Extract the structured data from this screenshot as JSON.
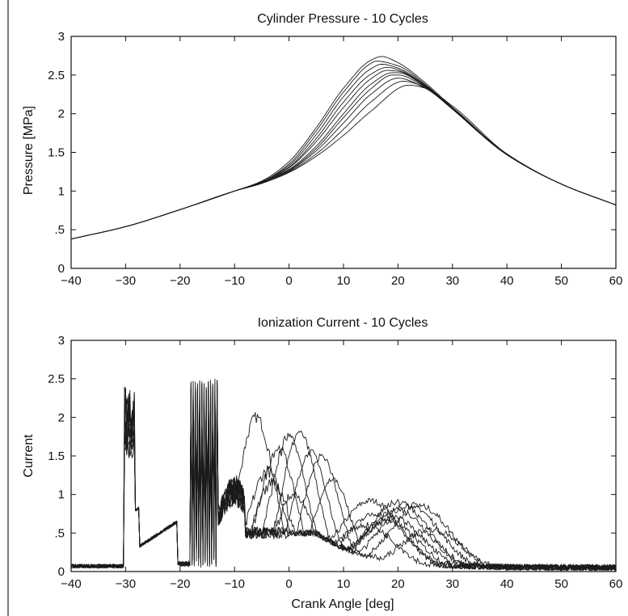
{
  "chart_data": [
    {
      "type": "line",
      "title": "Cylinder Pressure - 10 Cycles",
      "xlabel": "",
      "ylabel": "Pressure [MPa]",
      "xlim": [
        -40,
        60
      ],
      "ylim": [
        0,
        3
      ],
      "xticks": [
        -40,
        -30,
        -20,
        -10,
        0,
        10,
        20,
        30,
        40,
        50,
        60
      ],
      "yticks": [
        0,
        0.5,
        1,
        1.5,
        2,
        2.5,
        3
      ],
      "grid": false,
      "series": [
        {
          "peak_x": 17,
          "peak_y": 2.74,
          "x": [
            -40,
            -30,
            -20,
            -10,
            -5,
            0,
            5,
            10,
            15,
            17,
            20,
            25,
            30,
            40,
            50,
            60
          ],
          "values": [
            0.38,
            0.54,
            0.76,
            1.0,
            1.13,
            1.38,
            1.82,
            2.33,
            2.69,
            2.74,
            2.66,
            2.4,
            2.08,
            1.48,
            1.09,
            0.82
          ]
        },
        {
          "peak_x": 16,
          "peak_y": 2.68,
          "x": [
            -40,
            -30,
            -20,
            -10,
            -5,
            0,
            5,
            10,
            15,
            16,
            20,
            25,
            30,
            40,
            50,
            60
          ],
          "values": [
            0.38,
            0.54,
            0.76,
            1.0,
            1.12,
            1.35,
            1.78,
            2.28,
            2.65,
            2.68,
            2.62,
            2.38,
            2.07,
            1.48,
            1.09,
            0.82
          ]
        },
        {
          "peak_x": 17,
          "peak_y": 2.64,
          "x": [
            -40,
            -30,
            -20,
            -10,
            -5,
            0,
            5,
            10,
            15,
            17,
            20,
            25,
            30,
            40,
            50,
            60
          ],
          "values": [
            0.38,
            0.54,
            0.76,
            1.0,
            1.12,
            1.33,
            1.73,
            2.22,
            2.58,
            2.64,
            2.59,
            2.37,
            2.06,
            1.47,
            1.09,
            0.82
          ]
        },
        {
          "peak_x": 18,
          "peak_y": 2.6,
          "x": [
            -40,
            -30,
            -20,
            -10,
            -5,
            0,
            5,
            10,
            15,
            18,
            20,
            25,
            30,
            40,
            50,
            60
          ],
          "values": [
            0.38,
            0.54,
            0.76,
            1.0,
            1.12,
            1.31,
            1.68,
            2.15,
            2.51,
            2.6,
            2.57,
            2.36,
            2.06,
            1.47,
            1.09,
            0.82
          ]
        },
        {
          "peak_x": 18,
          "peak_y": 2.56,
          "x": [
            -40,
            -30,
            -20,
            -10,
            -5,
            0,
            5,
            10,
            15,
            18,
            20,
            25,
            30,
            40,
            50,
            60
          ],
          "values": [
            0.38,
            0.54,
            0.76,
            1.0,
            1.11,
            1.3,
            1.64,
            2.08,
            2.45,
            2.56,
            2.55,
            2.35,
            2.06,
            1.47,
            1.09,
            0.82
          ]
        },
        {
          "peak_x": 19,
          "peak_y": 2.53,
          "x": [
            -40,
            -30,
            -20,
            -10,
            -5,
            0,
            5,
            10,
            15,
            19,
            20,
            25,
            30,
            40,
            50,
            60
          ],
          "values": [
            0.38,
            0.54,
            0.76,
            1.0,
            1.11,
            1.28,
            1.58,
            2.0,
            2.38,
            2.53,
            2.53,
            2.35,
            2.06,
            1.47,
            1.09,
            0.82
          ]
        },
        {
          "peak_x": 19,
          "peak_y": 2.5,
          "x": [
            -40,
            -30,
            -20,
            -10,
            -5,
            0,
            5,
            10,
            15,
            19,
            20,
            25,
            30,
            40,
            50,
            60
          ],
          "values": [
            0.38,
            0.54,
            0.76,
            1.0,
            1.11,
            1.27,
            1.55,
            1.95,
            2.32,
            2.5,
            2.5,
            2.34,
            2.06,
            1.47,
            1.09,
            0.82
          ]
        },
        {
          "peak_x": 20,
          "peak_y": 2.46,
          "x": [
            -40,
            -30,
            -20,
            -10,
            -5,
            0,
            5,
            10,
            15,
            20,
            25,
            30,
            40,
            50,
            60
          ],
          "values": [
            0.38,
            0.54,
            0.76,
            1.0,
            1.1,
            1.26,
            1.52,
            1.88,
            2.25,
            2.46,
            2.33,
            2.06,
            1.47,
            1.09,
            0.82
          ]
        },
        {
          "peak_x": 21,
          "peak_y": 2.42,
          "x": [
            -40,
            -30,
            -20,
            -10,
            -5,
            0,
            5,
            10,
            15,
            21,
            25,
            30,
            40,
            50,
            60
          ],
          "values": [
            0.38,
            0.54,
            0.76,
            1.0,
            1.1,
            1.25,
            1.48,
            1.8,
            2.15,
            2.42,
            2.34,
            2.08,
            1.47,
            1.09,
            0.82
          ]
        },
        {
          "peak_x": 22,
          "peak_y": 2.37,
          "x": [
            -40,
            -30,
            -20,
            -10,
            -5,
            0,
            5,
            10,
            15,
            22,
            25,
            30,
            40,
            50,
            60
          ],
          "values": [
            0.38,
            0.54,
            0.76,
            1.0,
            1.1,
            1.24,
            1.45,
            1.72,
            2.03,
            2.37,
            2.33,
            2.1,
            1.48,
            1.09,
            0.82
          ]
        }
      ]
    },
    {
      "type": "line",
      "title": "Ionization Current - 10 Cycles",
      "xlabel": "Crank Angle [deg]",
      "ylabel": "Current",
      "xlim": [
        -40,
        60
      ],
      "ylim": [
        0,
        3
      ],
      "xticks": [
        -40,
        -30,
        -20,
        -10,
        0,
        10,
        20,
        30,
        40,
        50,
        60
      ],
      "yticks": [
        0,
        0.5,
        1,
        1.5,
        2,
        2.5,
        3
      ],
      "grid": false,
      "features": {
        "noise_level": 0.07,
        "first_burst": {
          "x_start": -30.2,
          "x_end": -28.2,
          "max": 2.45
        },
        "decay_ramp": {
          "x_start": -28,
          "x_end": -20.5,
          "y_start": 0.3,
          "y_end": 0.65
        },
        "spark_ringing": {
          "x_start": -18,
          "x_end": -13,
          "max": 2.5,
          "min": 0.05
        }
      },
      "series": [
        {
          "flame_peak_x": -6,
          "flame_peak_y": 2.0,
          "post_peak_x": 15,
          "post_peak_y": 0.92
        },
        {
          "flame_peak_x": -4,
          "flame_peak_y": 1.3,
          "post_peak_x": 22,
          "post_peak_y": 0.87
        },
        {
          "flame_peak_x": -2,
          "flame_peak_y": 1.6,
          "post_peak_x": 20,
          "post_peak_y": 0.8
        },
        {
          "flame_peak_x": 0,
          "flame_peak_y": 1.75,
          "post_peak_x": 18,
          "post_peak_y": 0.65
        },
        {
          "flame_peak_x": 2,
          "flame_peak_y": 1.8,
          "post_peak_x": 24,
          "post_peak_y": 0.85
        },
        {
          "flame_peak_x": 4,
          "flame_peak_y": 1.55,
          "post_peak_x": 16,
          "post_peak_y": 0.75
        },
        {
          "flame_peak_x": 6,
          "flame_peak_y": 1.5,
          "post_peak_x": 20,
          "post_peak_y": 0.9
        },
        {
          "flame_peak_x": -3,
          "flame_peak_y": 1.15,
          "post_peak_x": 14,
          "post_peak_y": 0.6
        },
        {
          "flame_peak_x": 1,
          "flame_peak_y": 1.0,
          "post_peak_x": 26,
          "post_peak_y": 0.55
        },
        {
          "flame_peak_x": 8,
          "flame_peak_y": 1.2,
          "post_peak_x": 19,
          "post_peak_y": 0.7
        }
      ]
    }
  ]
}
